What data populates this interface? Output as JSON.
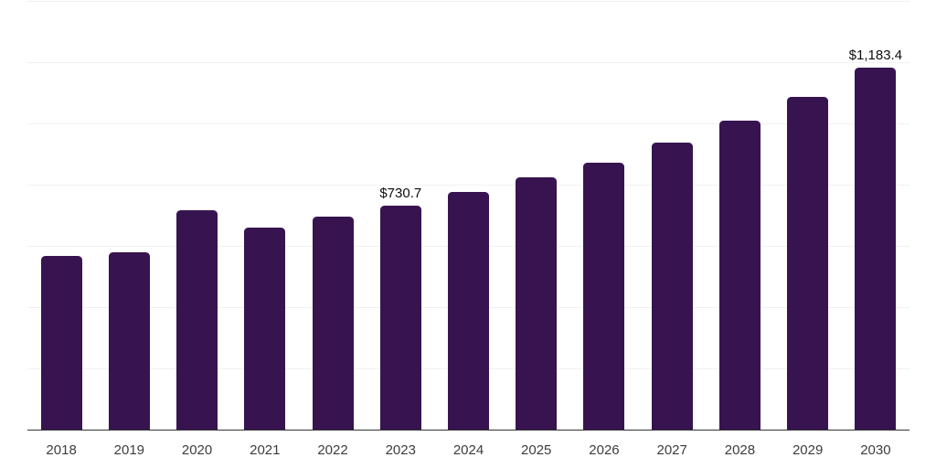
{
  "chart_data": {
    "type": "bar",
    "title": "",
    "xlabel": "",
    "ylabel": "",
    "categories": [
      "2018",
      "2019",
      "2020",
      "2021",
      "2022",
      "2023",
      "2024",
      "2025",
      "2026",
      "2027",
      "2028",
      "2029",
      "2030"
    ],
    "values": [
      568.6,
      580.6,
      717.8,
      661.1,
      694.2,
      730.7,
      775.5,
      822.9,
      871.0,
      936.9,
      1008.7,
      1086.6,
      1183.4
    ],
    "data_labels": [
      "",
      "",
      "",
      "",
      "",
      "$730.7",
      "",
      "",
      "",
      "",
      "",
      "",
      "$1,183.4"
    ],
    "ylim": [
      0,
      1400
    ],
    "gridline_step": 200,
    "grid": "horizontal",
    "legend": "none",
    "colors": {
      "bar": "#371450",
      "axis": "#333333",
      "gridline": "#f1f1f2",
      "value_label": "#0d0d0d",
      "tick_label": "#3d3d3d",
      "background": "#ffffff"
    }
  }
}
